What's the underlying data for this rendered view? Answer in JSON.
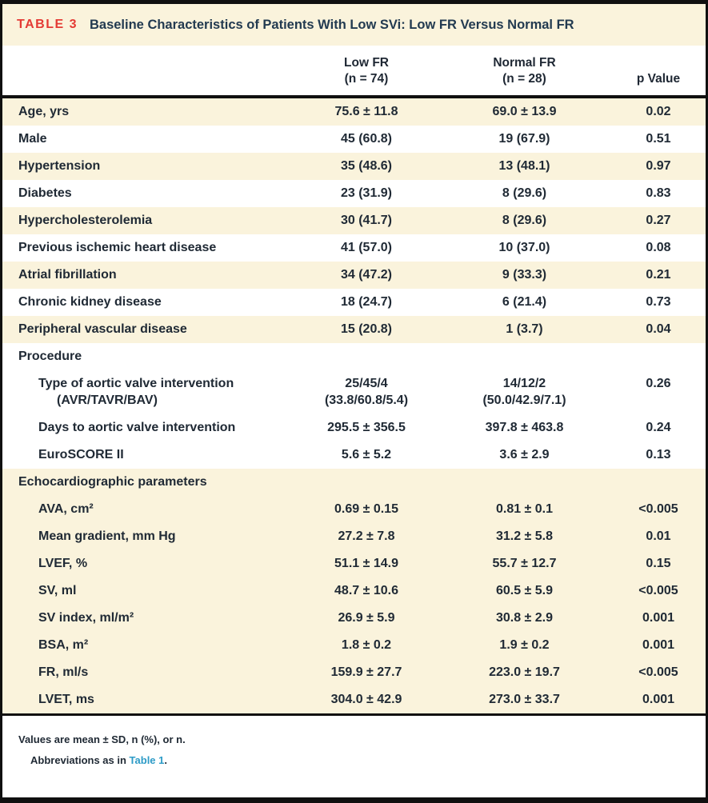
{
  "header": {
    "tag": "TABLE 3",
    "title": "Baseline Characteristics of Patients With Low SVi: Low FR Versus Normal FR"
  },
  "table": {
    "columns": [
      {
        "line1": "Low FR",
        "line2": "(n = 74)"
      },
      {
        "line1": "Normal FR",
        "line2": "(n = 28)"
      },
      {
        "line1": "p Value",
        "line2": ""
      }
    ],
    "rows": [
      {
        "label": "Age, yrs",
        "c1": "75.6 ± 11.8",
        "c2": "69.0 ± 13.9",
        "p": "0.02",
        "shade": "cream"
      },
      {
        "label": "Male",
        "c1": "45 (60.8)",
        "c2": "19 (67.9)",
        "p": "0.51",
        "shade": "white"
      },
      {
        "label": "Hypertension",
        "c1": "35 (48.6)",
        "c2": "13 (48.1)",
        "p": "0.97",
        "shade": "cream"
      },
      {
        "label": "Diabetes",
        "c1": "23 (31.9)",
        "c2": "8 (29.6)",
        "p": "0.83",
        "shade": "white"
      },
      {
        "label": "Hypercholesterolemia",
        "c1": "30 (41.7)",
        "c2": "8 (29.6)",
        "p": "0.27",
        "shade": "cream"
      },
      {
        "label": "Previous ischemic heart disease",
        "c1": "41 (57.0)",
        "c2": "10 (37.0)",
        "p": "0.08",
        "shade": "white"
      },
      {
        "label": "Atrial fibrillation",
        "c1": "34 (47.2)",
        "c2": "9 (33.3)",
        "p": "0.21",
        "shade": "cream"
      },
      {
        "label": "Chronic kidney disease",
        "c1": "18 (24.7)",
        "c2": "6 (21.4)",
        "p": "0.73",
        "shade": "white"
      },
      {
        "label": "Peripheral vascular disease",
        "c1": "15 (20.8)",
        "c2": "1 (3.7)",
        "p": "0.04",
        "shade": "cream"
      },
      {
        "label": "Procedure",
        "section": true,
        "shade": "white"
      },
      {
        "label": "Type of aortic valve intervention",
        "label2": "(AVR/TAVR/BAV)",
        "indent": true,
        "c1": "25/45/4",
        "c1b": "(33.8/60.8/5.4)",
        "c2": "14/12/2",
        "c2b": "(50.0/42.9/7.1)",
        "p": "0.26",
        "shade": "white"
      },
      {
        "label": "Days to aortic valve intervention",
        "indent": true,
        "c1": "295.5 ± 356.5",
        "c2": "397.8 ± 463.8",
        "p": "0.24",
        "shade": "white"
      },
      {
        "label": "EuroSCORE II",
        "indent": true,
        "c1": "5.6 ± 5.2",
        "c2": "3.6 ± 2.9",
        "p": "0.13",
        "shade": "white"
      },
      {
        "label": "Echocardiographic parameters",
        "section": true,
        "shade": "cream"
      },
      {
        "label": "AVA, cm²",
        "indent": true,
        "c1": "0.69 ± 0.15",
        "c2": "0.81 ± 0.1",
        "p": "<0.005",
        "shade": "cream"
      },
      {
        "label": "Mean gradient, mm Hg",
        "indent": true,
        "c1": "27.2 ± 7.8",
        "c2": "31.2 ± 5.8",
        "p": "0.01",
        "shade": "cream"
      },
      {
        "label": "LVEF, %",
        "indent": true,
        "c1": "51.1 ± 14.9",
        "c2": "55.7 ± 12.7",
        "p": "0.15",
        "shade": "cream"
      },
      {
        "label": "SV, ml",
        "indent": true,
        "c1": "48.7 ± 10.6",
        "c2": "60.5 ± 5.9",
        "p": "<0.005",
        "shade": "cream"
      },
      {
        "label": "SV index, ml/m²",
        "indent": true,
        "c1": "26.9 ± 5.9",
        "c2": "30.8 ± 2.9",
        "p": "0.001",
        "shade": "cream"
      },
      {
        "label": "BSA, m²",
        "indent": true,
        "c1": "1.8 ± 0.2",
        "c2": "1.9 ± 0.2",
        "p": "0.001",
        "shade": "cream"
      },
      {
        "label": "FR, ml/s",
        "indent": true,
        "c1": "159.9 ± 27.7",
        "c2": "223.0 ± 19.7",
        "p": "<0.005",
        "shade": "cream"
      },
      {
        "label": "LVET, ms",
        "indent": true,
        "c1": "304.0 ± 42.9",
        "c2": "273.0 ± 33.7",
        "p": "0.001",
        "shade": "cream"
      }
    ]
  },
  "footnotes": {
    "line1": "Values are mean ± SD, n (%), or n.",
    "line2_prefix": "Abbreviations as in ",
    "line2_link": "Table 1",
    "line2_suffix": "."
  },
  "colors": {
    "accent_red": "#e43a34",
    "row_shade_cream": "#faf3dc",
    "link_blue": "#2d9bc7",
    "border_black": "#101010",
    "text_dark": "#202a35"
  }
}
